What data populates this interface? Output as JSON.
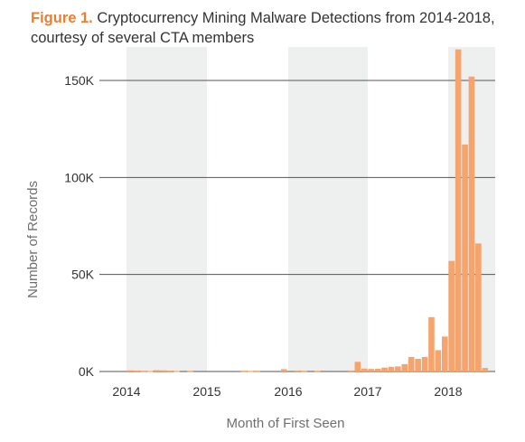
{
  "figure": {
    "number": "Figure 1.",
    "caption": "Cryptocurrency Mining Malware Detections from 2014-2018, courtesy of several CTA members"
  },
  "colors": {
    "bar": "#f4a46c",
    "title_accent": "#ee7d2f",
    "band": "#eef0ef",
    "grid": "#555555"
  },
  "chart_data": {
    "type": "bar",
    "title": "Cryptocurrency Mining Malware Detections from 2014-2018, courtesy of several CTA members",
    "xlabel": "Month of First Seen",
    "ylabel": "Number of Records",
    "x_ticks": [
      "2014",
      "2015",
      "2016",
      "2017",
      "2018"
    ],
    "y_ticks": [
      {
        "value": 0,
        "label": "0K"
      },
      {
        "value": 50000,
        "label": "50K"
      },
      {
        "value": 100000,
        "label": "100K"
      },
      {
        "value": 150000,
        "label": "150K"
      }
    ],
    "ylim": [
      0,
      170000
    ],
    "x_domain": [
      "2014-01",
      "2018-09"
    ],
    "shaded_years": [
      "2014",
      "2016",
      "2018"
    ],
    "grid": "horizontal",
    "series": [
      {
        "values": [
          {
            "month": "2014-01",
            "value": 600
          },
          {
            "month": "2014-02",
            "value": 500
          },
          {
            "month": "2014-03",
            "value": 400
          },
          {
            "month": "2014-04",
            "value": 300
          },
          {
            "month": "2014-05",
            "value": 700
          },
          {
            "month": "2014-06",
            "value": 600
          },
          {
            "month": "2014-07",
            "value": 500
          },
          {
            "month": "2014-08",
            "value": 300
          },
          {
            "month": "2014-10",
            "value": 400
          },
          {
            "month": "2015-06",
            "value": 400
          },
          {
            "month": "2015-07",
            "value": 300
          },
          {
            "month": "2015-08",
            "value": 400
          },
          {
            "month": "2015-12",
            "value": 1200
          },
          {
            "month": "2016-02",
            "value": 500
          },
          {
            "month": "2016-03",
            "value": 400
          },
          {
            "month": "2016-05",
            "value": 400
          },
          {
            "month": "2016-10",
            "value": 500
          },
          {
            "month": "2016-11",
            "value": 5000
          },
          {
            "month": "2016-12",
            "value": 1500
          },
          {
            "month": "2017-01",
            "value": 1300
          },
          {
            "month": "2017-02",
            "value": 1400
          },
          {
            "month": "2017-03",
            "value": 2000
          },
          {
            "month": "2017-04",
            "value": 2400
          },
          {
            "month": "2017-05",
            "value": 2600
          },
          {
            "month": "2017-06",
            "value": 3800
          },
          {
            "month": "2017-07",
            "value": 7500
          },
          {
            "month": "2017-08",
            "value": 6500
          },
          {
            "month": "2017-09",
            "value": 7500
          },
          {
            "month": "2017-10",
            "value": 28000
          },
          {
            "month": "2017-11",
            "value": 11000
          },
          {
            "month": "2017-12",
            "value": 18000
          },
          {
            "month": "2018-01",
            "value": 57000
          },
          {
            "month": "2018-02",
            "value": 166000
          },
          {
            "month": "2018-03",
            "value": 117000
          },
          {
            "month": "2018-04",
            "value": 152000
          },
          {
            "month": "2018-05",
            "value": 66000
          },
          {
            "month": "2018-06",
            "value": 1800
          }
        ]
      }
    ]
  }
}
